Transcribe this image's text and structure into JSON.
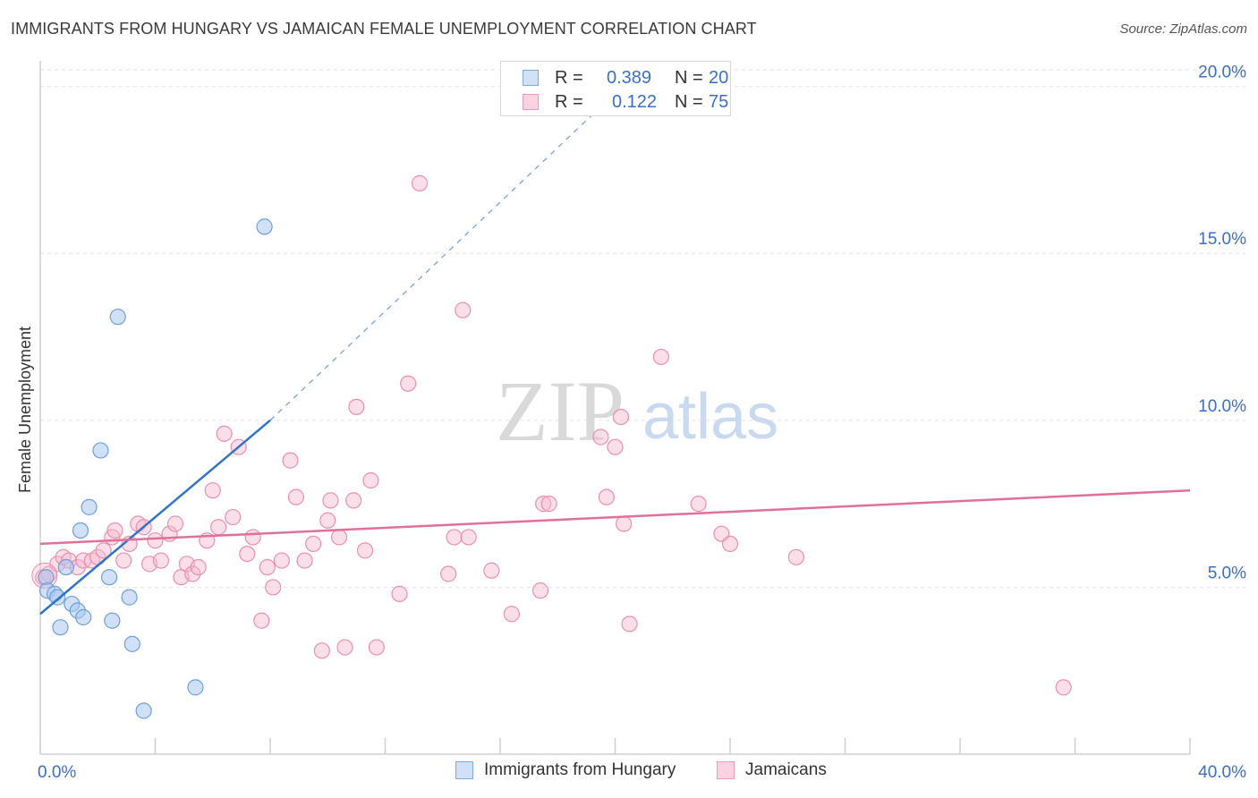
{
  "header": {
    "title": "IMMIGRANTS FROM HUNGARY VS JAMAICAN FEMALE UNEMPLOYMENT CORRELATION CHART",
    "source": "Source: ZipAtlas.com"
  },
  "stats": {
    "row1": {
      "r_label": "R =",
      "r_value": "0.389",
      "n_label": "N =",
      "n_value": "20",
      "color": "#a9c8f0"
    },
    "row2": {
      "r_label": "R =",
      "r_value": "0.122",
      "n_label": "N =",
      "n_value": "75",
      "color": "#f6b9cd"
    }
  },
  "legend": {
    "series1": "Immigrants from Hungary",
    "series2": "Jamaicans"
  },
  "watermark": {
    "part1": "ZIP",
    "part2": "atlas"
  },
  "colors": {
    "hungary_fill": "#a9c8f0",
    "hungary_stroke": "#6f9fd8",
    "hungary_line": "#2f74c8",
    "jamaica_fill": "#f6b9cd",
    "jamaica_stroke": "#eb8fae",
    "jamaica_line": "#e0709a",
    "tick_text": "#3b6fc4",
    "grid": "#e3e3e3"
  },
  "chart_data": {
    "type": "scatter",
    "title": "IMMIGRANTS FROM HUNGARY VS JAMAICAN FEMALE UNEMPLOYMENT CORRELATION CHART",
    "xlabel": "",
    "ylabel": "Female Unemployment",
    "xlim": [
      0,
      40
    ],
    "ylim": [
      0,
      20.5
    ],
    "x_tick_labels": [
      "0.0%",
      "40.0%"
    ],
    "y_ticks": [
      5,
      10,
      15,
      20
    ],
    "y_tick_labels": [
      "5.0%",
      "10.0%",
      "15.0%",
      "20.0%"
    ],
    "grid": true,
    "series": [
      {
        "name": "Immigrants from Hungary",
        "r": 0.389,
        "n": 20,
        "points": [
          [
            0.2,
            5.3
          ],
          [
            0.25,
            4.9
          ],
          [
            0.5,
            4.8
          ],
          [
            0.6,
            4.7
          ],
          [
            0.7,
            3.8
          ],
          [
            0.9,
            5.6
          ],
          [
            1.1,
            4.5
          ],
          [
            1.3,
            4.3
          ],
          [
            1.4,
            6.7
          ],
          [
            1.5,
            4.1
          ],
          [
            1.7,
            7.4
          ],
          [
            2.1,
            9.1
          ],
          [
            2.4,
            5.3
          ],
          [
            2.5,
            4.0
          ],
          [
            2.7,
            13.1
          ],
          [
            3.1,
            4.7
          ],
          [
            3.2,
            3.3
          ],
          [
            3.6,
            1.3
          ],
          [
            5.4,
            2.0
          ],
          [
            7.8,
            15.8
          ]
        ],
        "trend": {
          "x0": 0,
          "y0": 4.2,
          "x1": 8,
          "y1": 10.0,
          "dashed_to": [
            20,
            19.8
          ]
        }
      },
      {
        "name": "Jamaicans",
        "r": 0.122,
        "n": 75,
        "points": [
          [
            0.1,
            5.3
          ],
          [
            0.3,
            5.4
          ],
          [
            0.6,
            5.7
          ],
          [
            0.8,
            5.9
          ],
          [
            1.0,
            5.8
          ],
          [
            1.3,
            5.6
          ],
          [
            1.5,
            5.8
          ],
          [
            1.8,
            5.8
          ],
          [
            2.0,
            5.9
          ],
          [
            2.2,
            6.1
          ],
          [
            2.5,
            6.5
          ],
          [
            2.6,
            6.7
          ],
          [
            2.9,
            5.8
          ],
          [
            3.1,
            6.3
          ],
          [
            3.4,
            6.9
          ],
          [
            3.6,
            6.8
          ],
          [
            3.8,
            5.7
          ],
          [
            4.0,
            6.4
          ],
          [
            4.2,
            5.8
          ],
          [
            4.5,
            6.6
          ],
          [
            4.7,
            6.9
          ],
          [
            4.9,
            5.3
          ],
          [
            5.1,
            5.7
          ],
          [
            5.3,
            5.4
          ],
          [
            5.5,
            5.6
          ],
          [
            5.8,
            6.4
          ],
          [
            6.0,
            7.9
          ],
          [
            6.2,
            6.8
          ],
          [
            6.4,
            9.6
          ],
          [
            6.7,
            7.1
          ],
          [
            6.9,
            9.2
          ],
          [
            7.2,
            6.0
          ],
          [
            7.4,
            6.5
          ],
          [
            7.7,
            4.0
          ],
          [
            7.9,
            5.6
          ],
          [
            8.1,
            5.0
          ],
          [
            8.4,
            5.8
          ],
          [
            8.7,
            8.8
          ],
          [
            8.9,
            7.7
          ],
          [
            9.2,
            5.8
          ],
          [
            9.5,
            6.3
          ],
          [
            9.8,
            3.1
          ],
          [
            10.0,
            7.0
          ],
          [
            10.1,
            7.6
          ],
          [
            10.4,
            6.5
          ],
          [
            10.6,
            3.2
          ],
          [
            10.9,
            7.6
          ],
          [
            11.0,
            10.4
          ],
          [
            11.3,
            6.1
          ],
          [
            11.5,
            8.2
          ],
          [
            11.7,
            3.2
          ],
          [
            12.5,
            4.8
          ],
          [
            12.8,
            11.1
          ],
          [
            13.2,
            17.1
          ],
          [
            14.2,
            5.4
          ],
          [
            14.4,
            6.5
          ],
          [
            14.7,
            13.3
          ],
          [
            14.9,
            6.5
          ],
          [
            15.7,
            5.5
          ],
          [
            16.4,
            4.2
          ],
          [
            17.4,
            4.9
          ],
          [
            17.5,
            7.5
          ],
          [
            17.7,
            7.5
          ],
          [
            19.5,
            9.5
          ],
          [
            19.7,
            7.7
          ],
          [
            20.0,
            9.2
          ],
          [
            20.2,
            10.1
          ],
          [
            20.3,
            6.9
          ],
          [
            20.5,
            3.9
          ],
          [
            21.6,
            11.9
          ],
          [
            22.9,
            7.5
          ],
          [
            23.7,
            6.6
          ],
          [
            24.0,
            6.3
          ],
          [
            26.3,
            5.9
          ],
          [
            35.6,
            2.0
          ]
        ],
        "trend": {
          "x0": 0,
          "y0": 6.3,
          "x1": 40,
          "y1": 7.9
        }
      }
    ]
  }
}
